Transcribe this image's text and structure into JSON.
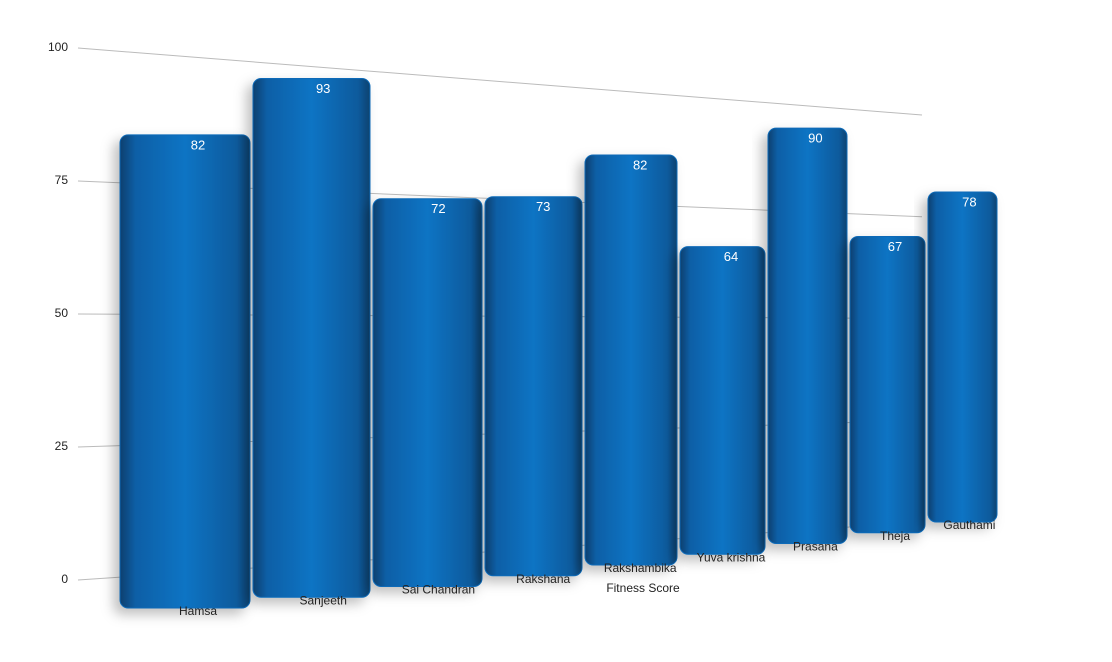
{
  "chart_data": {
    "type": "bar",
    "x_label": "Fitness Score",
    "categories": [
      "Hamsa",
      "Sanjeeth",
      "Sai Chandran",
      "Rakshana",
      "Rakshambika",
      "Yuva krishna",
      "Prasana",
      "Theja",
      "Gauthami"
    ],
    "values": [
      82,
      93,
      72,
      73,
      82,
      64,
      90,
      67,
      78
    ],
    "color": "#0a6ab8",
    "ylim": [
      0,
      100
    ],
    "yticks": [
      0,
      25,
      50,
      75,
      100
    ],
    "grid": true
  }
}
